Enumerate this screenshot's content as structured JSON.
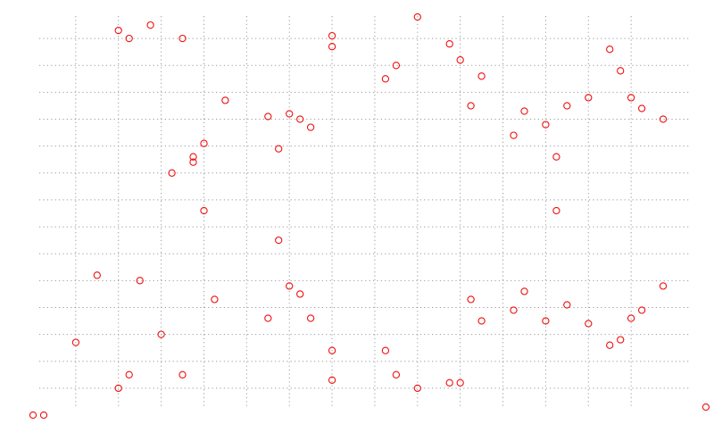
{
  "chart_data": {
    "type": "scatter",
    "title": "",
    "xlabel": "",
    "ylabel": "",
    "xlim": [
      -1,
      29
    ],
    "ylim": [
      0,
      15
    ],
    "grid": true,
    "grid_x": [
      1,
      3,
      5,
      7,
      9,
      11,
      13,
      15,
      17,
      19,
      21,
      23,
      25,
      27
    ],
    "grid_y": [
      1,
      2,
      3,
      4,
      5,
      6,
      7,
      8,
      9,
      10,
      11,
      12,
      13,
      14
    ],
    "marker": "circle-open",
    "color": "#ee1111",
    "series": [
      {
        "x": [
          -1,
          -0.5,
          1,
          2,
          3,
          3,
          3.5,
          3.5,
          4,
          4.5,
          5,
          5.5,
          6,
          6,
          6.5,
          6.5,
          7,
          7,
          7.5,
          8,
          10,
          10,
          10.5,
          10.5,
          11,
          11,
          11.5,
          11.5,
          12,
          12,
          13,
          13,
          13,
          13,
          15.5,
          15.5,
          16,
          16,
          17,
          17,
          18.5,
          18.5,
          19,
          19,
          19.5,
          19.5,
          20,
          20,
          21.5,
          21.5,
          22,
          22,
          23,
          23,
          23.5,
          23.5,
          24,
          24,
          25,
          25,
          26,
          26,
          26.5,
          26.5,
          27,
          27,
          27.5,
          27.5,
          28.5,
          28.5,
          30.5
        ],
        "y": [
          0,
          0,
          2.7,
          5.2,
          1,
          14.3,
          1.5,
          14,
          5,
          14.5,
          3,
          9,
          1.5,
          14,
          9.4,
          9.6,
          7.6,
          10.1,
          4.3,
          11.7,
          3.6,
          11.1,
          9.9,
          6.5,
          4.8,
          11.2,
          4.5,
          11,
          3.6,
          10.7,
          1.3,
          13.7,
          14.1,
          2.4,
          2.4,
          12.5,
          1.5,
          13,
          1,
          14.8,
          13.8,
          1.2,
          13.2,
          1.2,
          11.5,
          4.3,
          12.6,
          3.5,
          10.4,
          3.9,
          4.6,
          11.3,
          10.8,
          3.5,
          9.6,
          7.6,
          4.1,
          11.5,
          11.8,
          3.4,
          13.6,
          2.6,
          12.8,
          2.8,
          11.8,
          3.6,
          11.4,
          3.9,
          11,
          4.8,
          0.3
        ]
      }
    ]
  }
}
